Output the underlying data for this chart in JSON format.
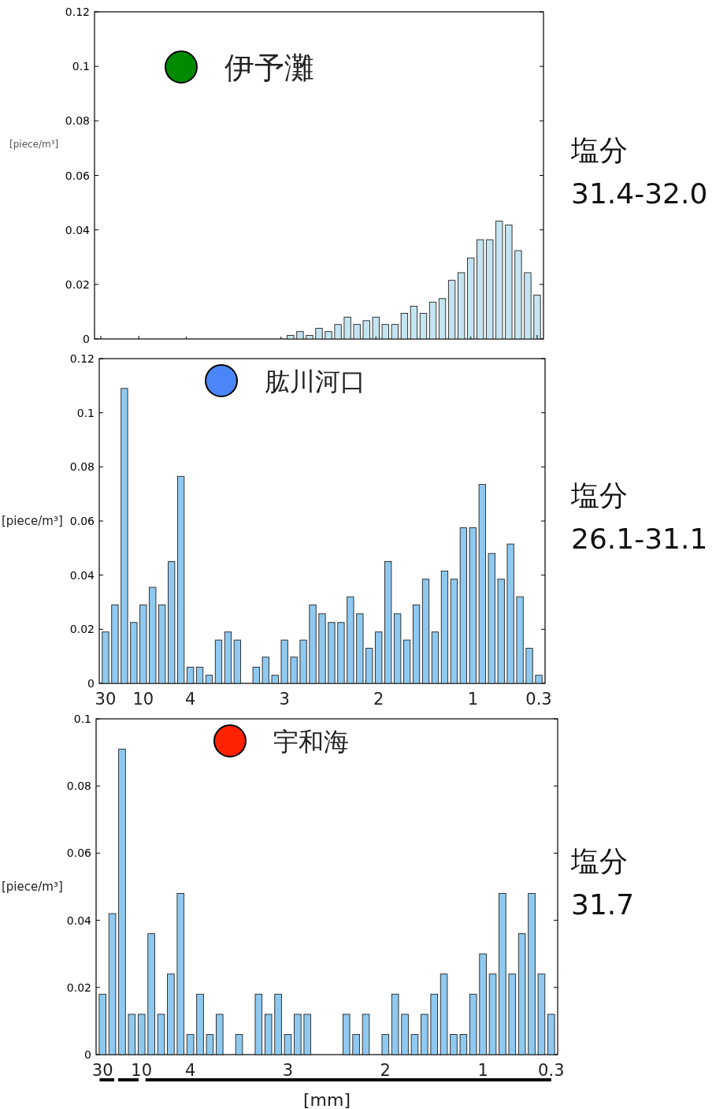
{
  "chart_data": [
    {
      "type": "bar",
      "title": "伊予灘",
      "ylabel": "[piece/m³]",
      "annotations": [
        "塩分\n31.4-32.0"
      ],
      "tick_labels": "y",
      "color": "#c5e4f1",
      "categories": [
        "30",
        null,
        null,
        null,
        "10",
        null,
        null,
        null,
        null,
        "4",
        null,
        null,
        null,
        null,
        null,
        null,
        null,
        null,
        null,
        "3",
        null,
        null,
        null,
        null,
        null,
        null,
        null,
        null,
        null,
        "2",
        null,
        null,
        null,
        null,
        null,
        null,
        null,
        null,
        null,
        "1",
        null,
        null,
        null,
        null,
        null,
        null,
        "0.3"
      ],
      "values": [
        0,
        0,
        0,
        0,
        0,
        0,
        0,
        0,
        0,
        0,
        0,
        0,
        0,
        0,
        0,
        0,
        0,
        0,
        0,
        0,
        0.0013,
        0.0027,
        0.0013,
        0.0039,
        0.0027,
        0.0053,
        0.008,
        0.0053,
        0.0067,
        0.008,
        0.0053,
        0.0053,
        0.0094,
        0.012,
        0.0094,
        0.0135,
        0.0148,
        0.0215,
        0.0243,
        0.0297,
        0.0364,
        0.0364,
        0.0432,
        0.0418,
        0.0324,
        0.0243,
        0.0161
      ],
      "ylim": [
        0,
        0.12
      ],
      "yticks": [
        0,
        0.02,
        0.04,
        0.06,
        0.08,
        0.1,
        0.12
      ]
    },
    {
      "type": "bar",
      "title": "肱川河口",
      "ylabel": "[piece/m³]",
      "annotations": [
        "塩分\n26.1-31.1"
      ],
      "color": "#8fc9f0",
      "categories": [
        "30",
        null,
        null,
        null,
        "10",
        null,
        null,
        null,
        null,
        "4",
        null,
        null,
        null,
        null,
        null,
        null,
        null,
        null,
        null,
        "3",
        null,
        null,
        null,
        null,
        null,
        null,
        null,
        null,
        null,
        "2",
        null,
        null,
        null,
        null,
        null,
        null,
        null,
        null,
        null,
        "1",
        null,
        null,
        null,
        null,
        null,
        null,
        "0.3"
      ],
      "values": [
        0.019,
        0.029,
        0.109,
        0.0225,
        0.029,
        0.0355,
        0.029,
        0.045,
        0.0765,
        0.006,
        0.006,
        0.003,
        0.016,
        0.019,
        0.016,
        null,
        0.006,
        0.0097,
        0.003,
        0.016,
        0.0097,
        0.016,
        0.029,
        0.0257,
        0.0225,
        0.0225,
        0.032,
        0.0257,
        0.013,
        0.019,
        0.045,
        0.0257,
        0.016,
        0.029,
        0.0385,
        0.019,
        0.0415,
        0.0385,
        0.0575,
        0.0575,
        0.0735,
        0.048,
        0.0385,
        0.0515,
        0.032,
        0.013,
        0.003
      ],
      "ylim": [
        0,
        0.12
      ],
      "yticks": [
        0,
        0.02,
        0.04,
        0.06,
        0.08,
        0.1,
        0.12
      ]
    },
    {
      "type": "bar",
      "title": "宇和海",
      "ylabel": "[piece/m³]",
      "xlabel": "[mm]",
      "annotations": [
        "塩分\n31.7"
      ],
      "color": "#8fc9f0",
      "categories": [
        "30",
        null,
        null,
        null,
        "10",
        null,
        null,
        null,
        null,
        "4",
        null,
        null,
        null,
        null,
        null,
        null,
        null,
        null,
        null,
        "3",
        null,
        null,
        null,
        null,
        null,
        null,
        null,
        null,
        null,
        "2",
        null,
        null,
        null,
        null,
        null,
        null,
        null,
        null,
        null,
        "1",
        null,
        null,
        null,
        null,
        null,
        null,
        "0.3"
      ],
      "values": [
        0.018,
        0.042,
        0.091,
        0.012,
        0.012,
        0.036,
        0.012,
        0.024,
        0.048,
        0.006,
        0.018,
        0.006,
        0.012,
        null,
        0.006,
        null,
        0.018,
        0.012,
        0.018,
        0.006,
        0.012,
        0.012,
        null,
        null,
        null,
        0.012,
        0.006,
        0.012,
        null,
        0.006,
        0.018,
        0.012,
        0.006,
        0.012,
        0.018,
        0.024,
        0.006,
        0.006,
        0.018,
        0.03,
        0.024,
        0.048,
        0.024,
        0.036,
        0.048,
        0.024,
        0.012
      ],
      "ylim": [
        0,
        0.1
      ],
      "yticks": [
        0,
        0.02,
        0.04,
        0.06,
        0.08,
        0.1
      ]
    }
  ]
}
